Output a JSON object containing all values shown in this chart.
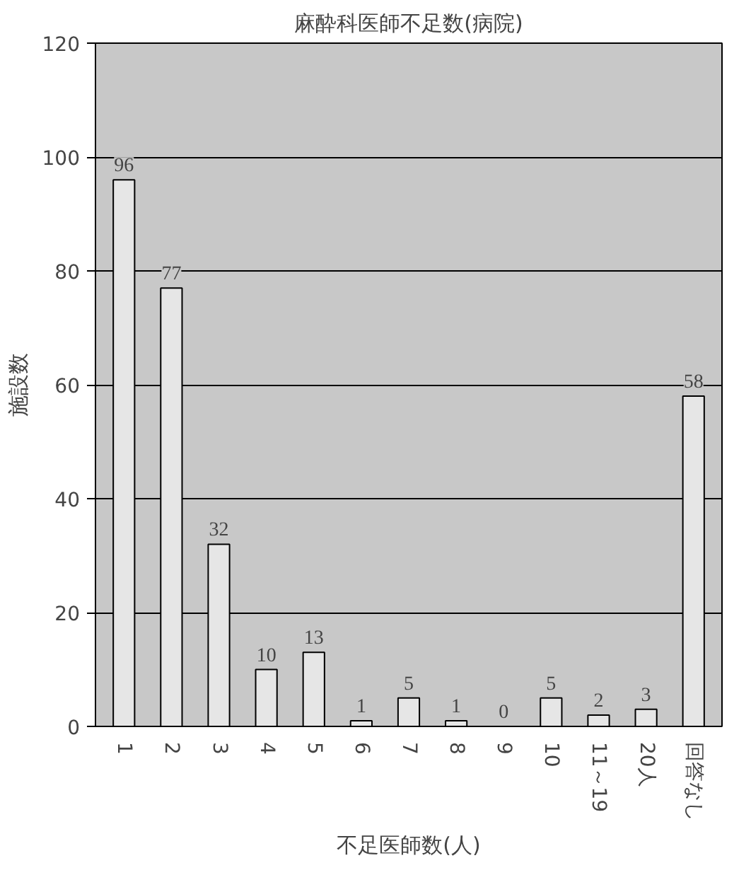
{
  "chart_data": {
    "type": "bar",
    "title": "麻酔科医師不足数(病院)",
    "xlabel": "不足医師数(人)",
    "ylabel": "施設数",
    "categories": [
      "1",
      "2",
      "3",
      "4",
      "5",
      "6",
      "7",
      "8",
      "9",
      "10",
      "11～19",
      "20人",
      "回答なし"
    ],
    "values": [
      96,
      77,
      32,
      10,
      13,
      1,
      5,
      1,
      0,
      5,
      2,
      3,
      58
    ],
    "color": "#e6e6e6",
    "ylim": [
      0,
      120
    ],
    "yticks": [
      0,
      20,
      40,
      60,
      80,
      100,
      120
    ],
    "grid": "y",
    "data_labels": true
  }
}
